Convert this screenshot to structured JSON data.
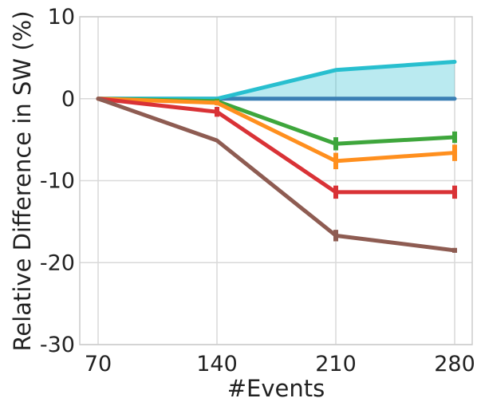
{
  "chart_data": {
    "type": "line",
    "xlabel": "#Events",
    "ylabel": "Relative Difference in SW (%)",
    "x": [
      70,
      140,
      210,
      280
    ],
    "x_tick_labels": [
      "70",
      "140",
      "210",
      "280"
    ],
    "y_ticks": [
      10,
      0,
      -10,
      -20,
      -30
    ],
    "y_tick_labels": [
      "10",
      "0",
      "-10",
      "-20",
      "-30"
    ],
    "xlim": [
      70,
      280
    ],
    "ylim": [
      -30,
      10
    ],
    "grid": true,
    "series": [
      {
        "color": "#3a7fb4",
        "values": [
          0,
          0,
          0,
          0
        ],
        "err": [
          0,
          0,
          0,
          0
        ]
      },
      {
        "color": "#28bfcf",
        "values": [
          0,
          0,
          3.5,
          4.5
        ],
        "err": [
          0,
          0,
          0,
          0
        ],
        "fill_to": 0
      },
      {
        "color": "#3ea63c",
        "values": [
          0,
          -0.3,
          -5.5,
          -4.7
        ],
        "err": [
          0,
          0.3,
          0.8,
          0.7
        ]
      },
      {
        "color": "#ff8f1e",
        "values": [
          0,
          -0.5,
          -7.6,
          -6.6
        ],
        "err": [
          0,
          0.3,
          1.0,
          1.0
        ]
      },
      {
        "color": "#d93236",
        "values": [
          0,
          -1.6,
          -11.4,
          -11.4
        ],
        "err": [
          0,
          0.6,
          0.8,
          0.8
        ]
      },
      {
        "color": "#8e5c52",
        "values": [
          0,
          -5.1,
          -16.7,
          -18.5
        ],
        "err": [
          0,
          0,
          0.7,
          0.3
        ]
      }
    ]
  }
}
